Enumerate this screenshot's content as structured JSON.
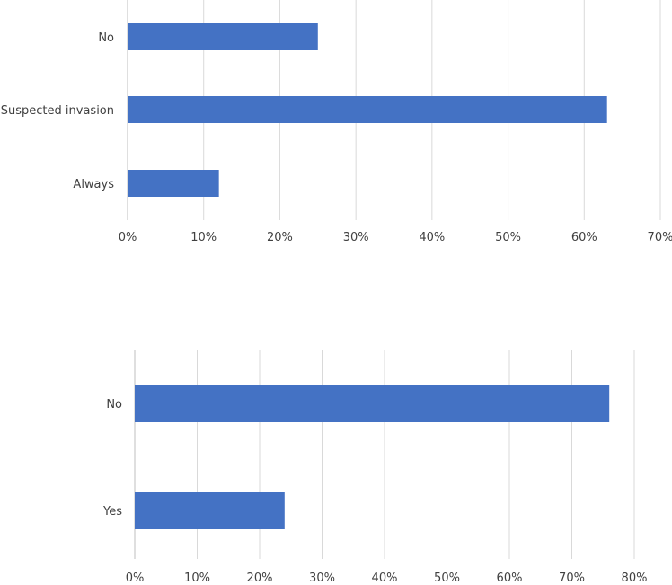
{
  "chart_data": [
    {
      "type": "bar",
      "orientation": "horizontal",
      "categories": [
        "No",
        "Suspected invasion",
        "Always"
      ],
      "values": [
        25,
        63,
        12
      ],
      "xlim": [
        0,
        70
      ],
      "xticks": [
        "0%",
        "10%",
        "20%",
        "30%",
        "40%",
        "50%",
        "60%",
        "70%"
      ],
      "bar_color": "#4472C4",
      "grid": true,
      "legend": "none"
    },
    {
      "type": "bar",
      "orientation": "horizontal",
      "categories": [
        "No",
        "Yes"
      ],
      "values": [
        76,
        24
      ],
      "xlim": [
        0,
        80
      ],
      "xticks": [
        "0%",
        "10%",
        "20%",
        "30%",
        "40%",
        "50%",
        "60%",
        "70%",
        "80%"
      ],
      "bar_color": "#4472C4",
      "grid": true,
      "legend": "none"
    }
  ]
}
